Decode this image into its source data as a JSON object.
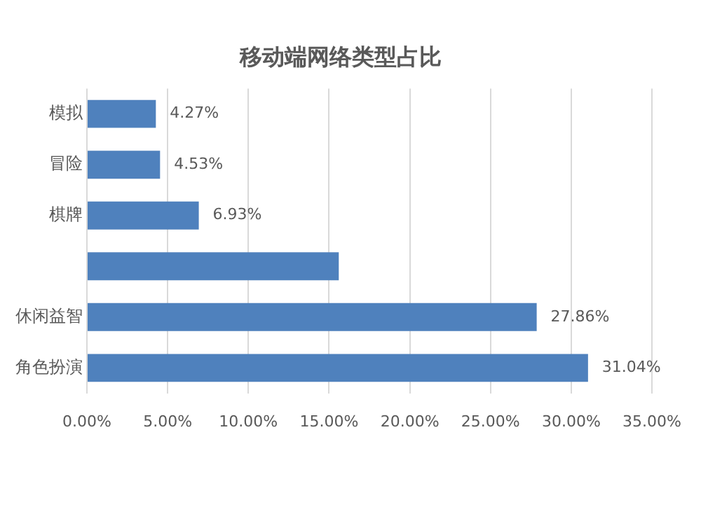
{
  "chart_data": {
    "type": "bar",
    "orientation": "horizontal",
    "title": "移动端网络类型占比",
    "categories": [
      "模拟",
      "冒险",
      "棋牌",
      null,
      "休闲益智",
      "角色扮演"
    ],
    "values": [
      4.27,
      4.53,
      6.93,
      15.6,
      27.86,
      31.04
    ],
    "value_labels": [
      "4.27%",
      "4.53%",
      "6.93%",
      null,
      "27.86%",
      "31.04%"
    ],
    "color": "#4f81bd",
    "xlim": [
      0,
      35
    ],
    "xticks": [
      {
        "value": 0,
        "label": "0.00%"
      },
      {
        "value": 5,
        "label": "5.00%"
      },
      {
        "value": 10,
        "label": "10.00%"
      },
      {
        "value": 15,
        "label": "15.00%"
      },
      {
        "value": 20,
        "label": "20.00%"
      },
      {
        "value": 25,
        "label": "25.00%"
      },
      {
        "value": 30,
        "label": "30.00%"
      },
      {
        "value": 35,
        "label": "35.00%"
      }
    ],
    "grid": "x",
    "legend": false
  }
}
